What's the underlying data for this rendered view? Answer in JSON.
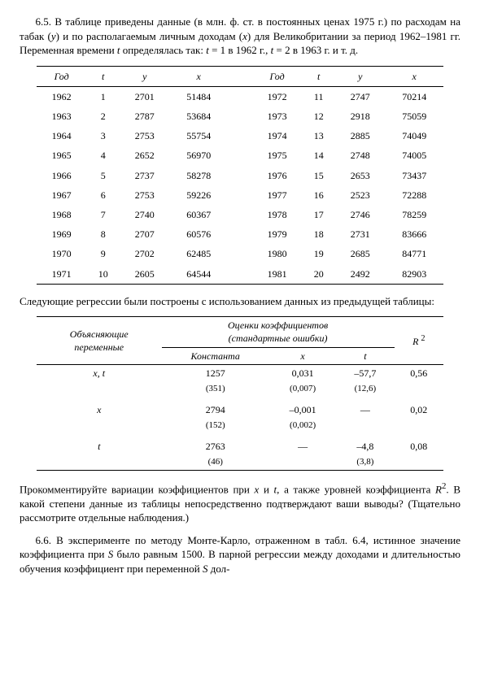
{
  "p1": {
    "head": "6.5. В таблице приведены данные (в млн. ф. ст. в постоянных ценах 1975 г.) по расходам на табак (",
    "y": "y",
    "mid1": ") и по располагаемым личным доходам (",
    "x": "x",
    "mid2": ") для Великобритании за период 1962–1981 гг. Переменная времени ",
    "t": "t",
    "mid3": " определялась так: ",
    "t1": "t",
    "eq1": " = 1 в 1962 г., ",
    "t2": "t",
    "eq2": " = 2 в 1963 г. и т. д."
  },
  "t1": {
    "h_year": "Год",
    "h_t": "t",
    "h_y": "y",
    "h_x": "x",
    "rows": [
      {
        "a": "1962",
        "b": "1",
        "c": "2701",
        "d": "51484",
        "e": "1972",
        "f": "11",
        "g": "2747",
        "h": "70214"
      },
      {
        "a": "1963",
        "b": "2",
        "c": "2787",
        "d": "53684",
        "e": "1973",
        "f": "12",
        "g": "2918",
        "h": "75059"
      },
      {
        "a": "1964",
        "b": "3",
        "c": "2753",
        "d": "55754",
        "e": "1974",
        "f": "13",
        "g": "2885",
        "h": "74049"
      },
      {
        "a": "1965",
        "b": "4",
        "c": "2652",
        "d": "56970",
        "e": "1975",
        "f": "14",
        "g": "2748",
        "h": "74005"
      },
      {
        "a": "1966",
        "b": "5",
        "c": "2737",
        "d": "58278",
        "e": "1976",
        "f": "15",
        "g": "2653",
        "h": "73437"
      },
      {
        "a": "1967",
        "b": "6",
        "c": "2753",
        "d": "59226",
        "e": "1977",
        "f": "16",
        "g": "2523",
        "h": "72288"
      },
      {
        "a": "1968",
        "b": "7",
        "c": "2740",
        "d": "60367",
        "e": "1978",
        "f": "17",
        "g": "2746",
        "h": "78259"
      },
      {
        "a": "1969",
        "b": "8",
        "c": "2707",
        "d": "60576",
        "e": "1979",
        "f": "18",
        "g": "2731",
        "h": "83666"
      },
      {
        "a": "1970",
        "b": "9",
        "c": "2702",
        "d": "62485",
        "e": "1980",
        "f": "19",
        "g": "2685",
        "h": "84771"
      },
      {
        "a": "1971",
        "b": "10",
        "c": "2605",
        "d": "64544",
        "e": "1981",
        "f": "20",
        "g": "2492",
        "h": "82903"
      }
    ]
  },
  "p2": "Следующие регрессии были построены с использованием данных из предыдущей таблицы:",
  "t2": {
    "h_vars1": "Объясняющие",
    "h_vars2": "переменные",
    "h_coef1": "Оценки коэффициентов",
    "h_coef2": "(стандартные ошибки)",
    "h_const": "Константа",
    "h_x": "x",
    "h_t": "t",
    "h_r2a": "R",
    "h_r2b": "2",
    "rows": [
      {
        "v": "x, t",
        "c": "1257",
        "cs": "(351)",
        "x": "0,031",
        "xs": "(0,007)",
        "t": "–57,7",
        "ts": "(12,6)",
        "r": "0,56"
      },
      {
        "v": "x",
        "c": "2794",
        "cs": "(152)",
        "x": "–0,001",
        "xs": "(0,002)",
        "t": "—",
        "ts": "",
        "r": "0,02"
      },
      {
        "v": "t",
        "c": "2763",
        "cs": "(46)",
        "x": "—",
        "xs": "",
        "t": "–4,8",
        "ts": "(3,8)",
        "r": "0,08"
      }
    ]
  },
  "p3": {
    "a": "Прокомментируйте вариации коэффициентов при ",
    "x": "x",
    "b": " и ",
    "t": "t",
    "c": ", а также уровней коэффициента ",
    "r": "R",
    "sup": "2",
    "d": ". В какой степени данные из таблицы непосредственно подтверждают ваши выводы? (Тщательно рассмотрите отдельные наблюдения.)"
  },
  "p4": {
    "a": "6.6. В эксперименте по методу Монте-Карло, отраженном в табл. 6.4, истинное значение коэффициента при ",
    "s": "S",
    "b": " было равным 1500. В парной регрессии между доходами и длительностью обучения коэффициент при переменной ",
    "s2": "S",
    "c": " дол-"
  }
}
